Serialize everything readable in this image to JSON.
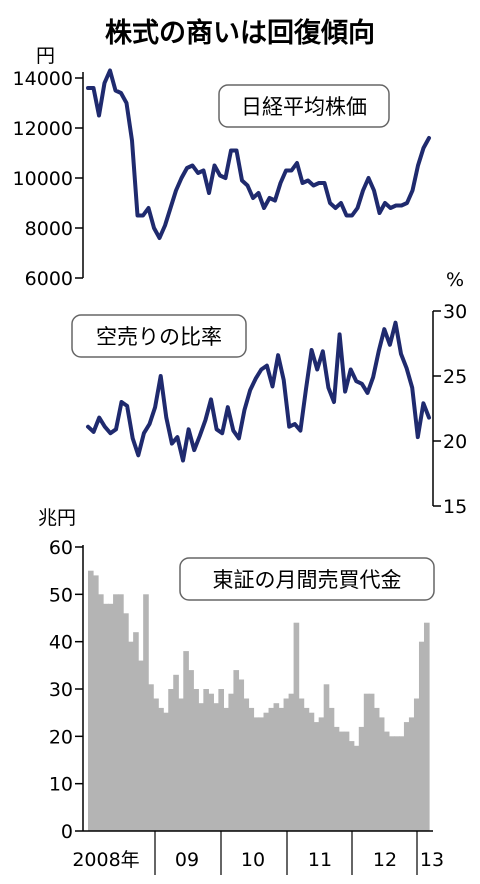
{
  "title": "株式の商いは回復傾向",
  "x_axis": {
    "labels": [
      "2008年",
      "09",
      "10",
      "11",
      "12",
      "13"
    ]
  },
  "chart_data": [
    {
      "type": "line",
      "label": "日経平均株価",
      "unit": "円",
      "ylim": [
        6000,
        14000
      ],
      "yticks": [
        6000,
        8000,
        10000,
        12000,
        14000
      ],
      "series": [
        {
          "color": "#1f2a6e",
          "values": [
            13600,
            13600,
            12500,
            13800,
            14300,
            13500,
            13400,
            13000,
            11500,
            8500,
            8500,
            8800,
            8000,
            7600,
            8100,
            8800,
            9500,
            10000,
            10400,
            10500,
            10200,
            10300,
            9400,
            10500,
            10100,
            10000,
            11100,
            11100,
            9900,
            9700,
            9200,
            9400,
            8800,
            9200,
            9100,
            9800,
            10300,
            10300,
            10600,
            9800,
            9900,
            9700,
            9800,
            9800,
            9000,
            8800,
            9000,
            8500,
            8500,
            8800,
            9500,
            10000,
            9500,
            8600,
            9000,
            8800,
            8900,
            8900,
            9000,
            9500,
            10500,
            11200,
            11600
          ]
        }
      ]
    },
    {
      "type": "line",
      "label": "空売りの比率",
      "unit": "%",
      "ylim": [
        15,
        30
      ],
      "yticks": [
        15,
        20,
        25,
        30
      ],
      "series": [
        {
          "color": "#1f2a6e",
          "values": [
            21.1,
            20.7,
            21.8,
            21.1,
            20.6,
            20.9,
            23.0,
            22.7,
            20.2,
            18.9,
            20.6,
            21.3,
            22.6,
            25.0,
            21.8,
            19.8,
            20.3,
            18.5,
            20.9,
            19.3,
            20.4,
            21.6,
            23.2,
            20.9,
            20.6,
            22.6,
            20.8,
            20.2,
            22.4,
            23.9,
            24.8,
            25.5,
            25.8,
            24.2,
            26.6,
            24.7,
            21.1,
            21.3,
            20.8,
            24.0,
            27.0,
            25.5,
            26.9,
            24.1,
            23.0,
            28.2,
            23.8,
            25.5,
            24.6,
            24.4,
            23.7,
            24.9,
            26.9,
            28.6,
            27.4,
            29.1,
            26.7,
            25.6,
            24.1,
            20.3,
            22.9,
            21.8
          ]
        }
      ]
    },
    {
      "type": "bar",
      "label": "東証の月間売買代金",
      "unit": "兆円",
      "ylim": [
        0,
        60
      ],
      "yticks": [
        0,
        10,
        20,
        30,
        40,
        50,
        60
      ],
      "series": [
        {
          "color": "#b4b4b4",
          "values": [
            55,
            54,
            50,
            48,
            48,
            50,
            50,
            46,
            40,
            42,
            36,
            50,
            31,
            28,
            26,
            25,
            30,
            33,
            28,
            38,
            34,
            30,
            27,
            30,
            29,
            27,
            30,
            26,
            29,
            34,
            32,
            28,
            26,
            24,
            24,
            25,
            26,
            27,
            26,
            28,
            29,
            44,
            28,
            26,
            25,
            23,
            24,
            31,
            26,
            22,
            21,
            21,
            19,
            18,
            22,
            29,
            29,
            26,
            24,
            21,
            20,
            20,
            20,
            23,
            24,
            28,
            40,
            44
          ]
        }
      ]
    }
  ]
}
